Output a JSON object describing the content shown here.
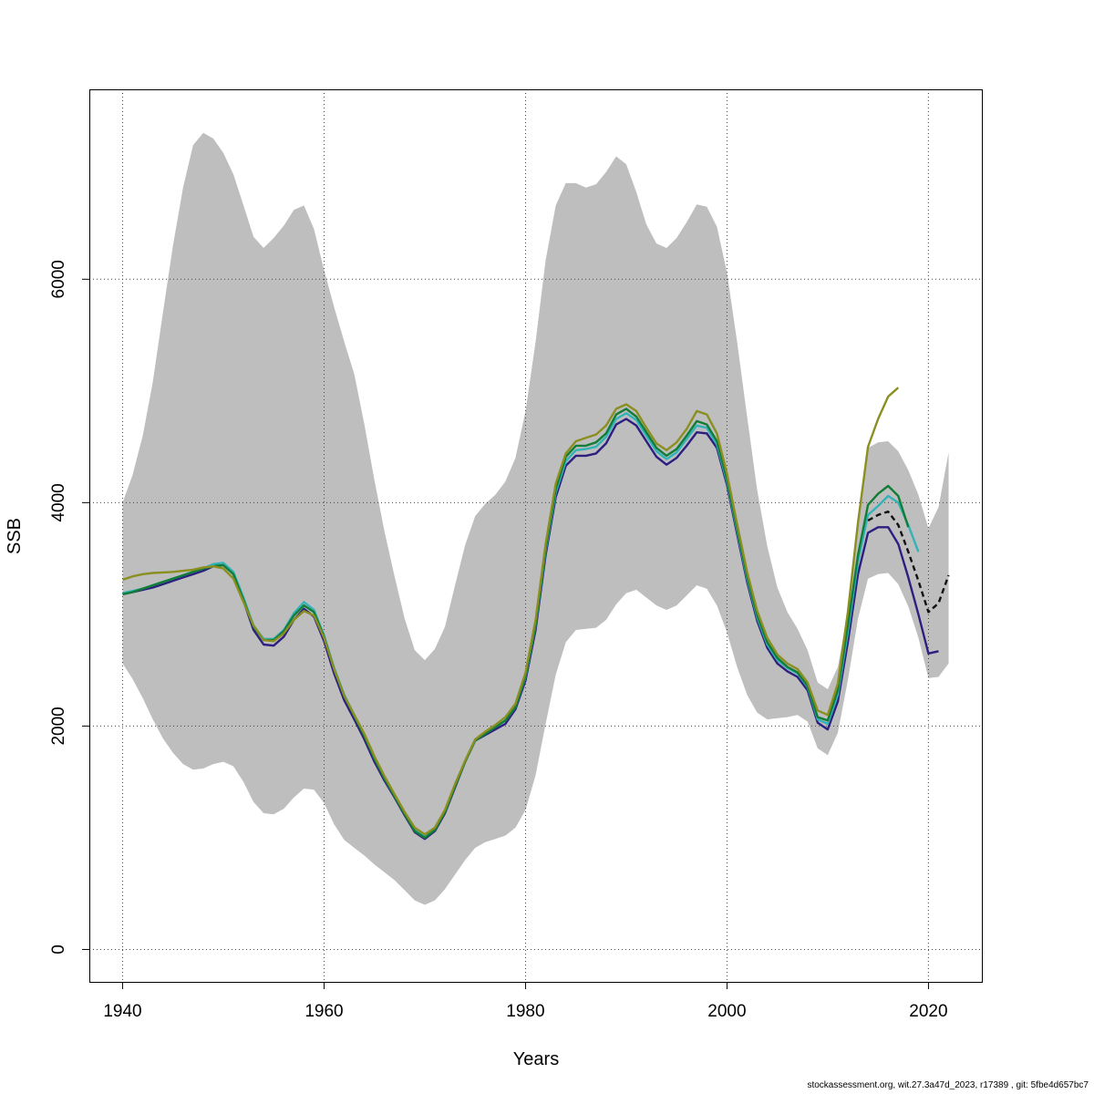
{
  "chart_data": {
    "type": "line",
    "title": "",
    "xlabel": "Years",
    "ylabel": "SSB",
    "xlim": [
      1936.7,
      2025.3
    ],
    "ylim": [
      -290,
      7700
    ],
    "x_ticks": [
      1940,
      1960,
      1980,
      2000,
      2020
    ],
    "y_ticks": [
      0,
      2000,
      4000,
      6000
    ],
    "grid": true,
    "confidence_band": {
      "x": [
        1940,
        1941,
        1942,
        1943,
        1944,
        1945,
        1946,
        1947,
        1948,
        1949,
        1950,
        1951,
        1952,
        1953,
        1954,
        1955,
        1956,
        1957,
        1958,
        1959,
        1960,
        1961,
        1962,
        1963,
        1964,
        1965,
        1966,
        1967,
        1968,
        1969,
        1970,
        1971,
        1972,
        1973,
        1974,
        1975,
        1976,
        1977,
        1978,
        1979,
        1980,
        1981,
        1982,
        1983,
        1984,
        1985,
        1986,
        1987,
        1988,
        1989,
        1990,
        1991,
        1992,
        1993,
        1994,
        1995,
        1996,
        1997,
        1998,
        1999,
        2000,
        2001,
        2002,
        2003,
        2004,
        2005,
        2006,
        2007,
        2008,
        2009,
        2010,
        2011,
        2012,
        2013,
        2014,
        2015,
        2016,
        2017,
        2018,
        2019,
        2020,
        2021,
        2022
      ],
      "lower": [
        2560,
        2420,
        2250,
        2060,
        1890,
        1760,
        1660,
        1610,
        1620,
        1660,
        1680,
        1640,
        1500,
        1320,
        1220,
        1210,
        1260,
        1360,
        1440,
        1430,
        1310,
        1120,
        980,
        910,
        840,
        760,
        690,
        620,
        530,
        440,
        400,
        440,
        540,
        670,
        800,
        910,
        960,
        990,
        1020,
        1090,
        1250,
        1560,
        2020,
        2460,
        2750,
        2860,
        2870,
        2880,
        2950,
        3090,
        3190,
        3220,
        3150,
        3080,
        3040,
        3080,
        3170,
        3260,
        3230,
        3080,
        2840,
        2530,
        2280,
        2120,
        2060,
        2070,
        2080,
        2100,
        2040,
        1800,
        1740,
        1940,
        2410,
        2960,
        3320,
        3360,
        3370,
        3270,
        3070,
        2790,
        2430,
        2440,
        2560
      ],
      "upper": [
        4000,
        4250,
        4600,
        5080,
        5700,
        6300,
        6820,
        7200,
        7310,
        7260,
        7130,
        6940,
        6660,
        6380,
        6280,
        6370,
        6480,
        6620,
        6660,
        6450,
        6080,
        5750,
        5440,
        5150,
        4700,
        4200,
        3740,
        3340,
        2960,
        2680,
        2590,
        2690,
        2890,
        3260,
        3620,
        3880,
        3990,
        4070,
        4190,
        4400,
        4820,
        5440,
        6170,
        6660,
        6860,
        6860,
        6820,
        6850,
        6960,
        7100,
        7030,
        6780,
        6490,
        6320,
        6280,
        6370,
        6510,
        6670,
        6650,
        6470,
        6060,
        5440,
        4770,
        4110,
        3610,
        3240,
        3020,
        2870,
        2680,
        2390,
        2330,
        2530,
        3020,
        3860,
        4490,
        4540,
        4550,
        4460,
        4290,
        4070,
        3770,
        3960,
        4450
      ]
    },
    "series": [
      {
        "color": "#2c1f80",
        "x": [
          1940,
          1941,
          1942,
          1943,
          1944,
          1945,
          1946,
          1947,
          1948,
          1949,
          1950,
          1951,
          1952,
          1953,
          1954,
          1955,
          1956,
          1957,
          1958,
          1959,
          1960,
          1961,
          1962,
          1963,
          1964,
          1965,
          1966,
          1967,
          1968,
          1969,
          1970,
          1971,
          1972,
          1973,
          1974,
          1975,
          1976,
          1977,
          1978,
          1979,
          1980,
          1981,
          1982,
          1983,
          1984,
          1985,
          1986,
          1987,
          1988,
          1989,
          1990,
          1991,
          1992,
          1993,
          1994,
          1995,
          1996,
          1997,
          1998,
          1999,
          2000,
          2001,
          2002,
          2003,
          2004,
          2005,
          2006,
          2007,
          2008,
          2009,
          2010,
          2011,
          2012,
          2013,
          2014,
          2015,
          2016,
          2017,
          2018,
          2019,
          2020,
          2021
        ],
        "y": [
          3180,
          3200,
          3220,
          3240,
          3270,
          3300,
          3330,
          3360,
          3390,
          3430,
          3450,
          3360,
          3120,
          2860,
          2730,
          2720,
          2800,
          2950,
          3050,
          2980,
          2760,
          2470,
          2230,
          2060,
          1880,
          1680,
          1510,
          1360,
          1200,
          1050,
          990,
          1060,
          1220,
          1450,
          1680,
          1870,
          1920,
          1970,
          2020,
          2150,
          2410,
          2860,
          3530,
          4050,
          4330,
          4420,
          4420,
          4440,
          4530,
          4700,
          4750,
          4690,
          4550,
          4410,
          4340,
          4400,
          4510,
          4630,
          4620,
          4490,
          4160,
          3720,
          3290,
          2940,
          2700,
          2560,
          2490,
          2440,
          2320,
          2030,
          1970,
          2220,
          2750,
          3360,
          3730,
          3780,
          3780,
          3630,
          3330,
          3000,
          2650,
          2670
        ]
      },
      {
        "color": "#33b3b8",
        "x": [
          1940,
          1941,
          1942,
          1943,
          1944,
          1945,
          1946,
          1947,
          1948,
          1949,
          1950,
          1951,
          1952,
          1953,
          1954,
          1955,
          1956,
          1957,
          1958,
          1959,
          1960,
          1961,
          1962,
          1963,
          1964,
          1965,
          1966,
          1967,
          1968,
          1969,
          1970,
          1971,
          1972,
          1973,
          1974,
          1975,
          1976,
          1977,
          1978,
          1979,
          1980,
          1981,
          1982,
          1983,
          1984,
          1985,
          1986,
          1987,
          1988,
          1989,
          1990,
          1991,
          1992,
          1993,
          1994,
          1995,
          1996,
          1997,
          1998,
          1999,
          2000,
          2001,
          2002,
          2003,
          2004,
          2005,
          2006,
          2007,
          2008,
          2009,
          2010,
          2011,
          2012,
          2013,
          2014,
          2015,
          2016,
          2017,
          2018,
          2019
        ],
        "y": [
          3190,
          3210,
          3230,
          3260,
          3290,
          3320,
          3350,
          3380,
          3410,
          3450,
          3460,
          3380,
          3150,
          2900,
          2780,
          2780,
          2860,
          3010,
          3110,
          3040,
          2810,
          2520,
          2280,
          2100,
          1920,
          1710,
          1540,
          1380,
          1220,
          1070,
          1010,
          1080,
          1240,
          1470,
          1690,
          1880,
          1940,
          1990,
          2050,
          2170,
          2440,
          2900,
          3570,
          4090,
          4370,
          4470,
          4480,
          4500,
          4590,
          4750,
          4800,
          4740,
          4600,
          4460,
          4390,
          4450,
          4570,
          4690,
          4670,
          4520,
          4190,
          3750,
          3320,
          2970,
          2730,
          2590,
          2520,
          2470,
          2350,
          2060,
          2020,
          2280,
          2840,
          3470,
          3890,
          3970,
          4060,
          4000,
          3800,
          3560
        ]
      },
      {
        "color": "#127d36",
        "x": [
          1940,
          1941,
          1942,
          1943,
          1944,
          1945,
          1946,
          1947,
          1948,
          1949,
          1950,
          1951,
          1952,
          1953,
          1954,
          1955,
          1956,
          1957,
          1958,
          1959,
          1960,
          1961,
          1962,
          1963,
          1964,
          1965,
          1966,
          1967,
          1968,
          1969,
          1970,
          1971,
          1972,
          1973,
          1974,
          1975,
          1976,
          1977,
          1978,
          1979,
          1980,
          1981,
          1982,
          1983,
          1984,
          1985,
          1986,
          1987,
          1988,
          1989,
          1990,
          1991,
          1992,
          1993,
          1994,
          1995,
          1996,
          1997,
          1998,
          1999,
          2000,
          2001,
          2002,
          2003,
          2004,
          2005,
          2006,
          2007,
          2008,
          2009,
          2010,
          2011,
          2012,
          2013,
          2014,
          2015,
          2016,
          2017,
          2018
        ],
        "y": [
          3180,
          3200,
          3230,
          3260,
          3290,
          3320,
          3350,
          3380,
          3410,
          3430,
          3440,
          3360,
          3130,
          2890,
          2770,
          2770,
          2850,
          2990,
          3080,
          3020,
          2800,
          2510,
          2270,
          2090,
          1910,
          1710,
          1530,
          1370,
          1210,
          1060,
          1000,
          1070,
          1230,
          1460,
          1680,
          1870,
          1930,
          1990,
          2050,
          2170,
          2450,
          2910,
          3590,
          4120,
          4410,
          4510,
          4510,
          4540,
          4620,
          4790,
          4840,
          4770,
          4630,
          4490,
          4420,
          4480,
          4600,
          4730,
          4700,
          4550,
          4210,
          3770,
          3340,
          2990,
          2750,
          2610,
          2530,
          2480,
          2360,
          2080,
          2050,
          2320,
          2900,
          3530,
          3980,
          4080,
          4150,
          4060,
          3780
        ]
      },
      {
        "color": "#8a8f20",
        "x": [
          1940,
          1941,
          1942,
          1943,
          1944,
          1945,
          1946,
          1947,
          1948,
          1949,
          1950,
          1951,
          1952,
          1953,
          1954,
          1955,
          1956,
          1957,
          1958,
          1959,
          1960,
          1961,
          1962,
          1963,
          1964,
          1965,
          1966,
          1967,
          1968,
          1969,
          1970,
          1971,
          1972,
          1973,
          1974,
          1975,
          1976,
          1977,
          1978,
          1979,
          1980,
          1981,
          1982,
          1983,
          1984,
          1985,
          1986,
          1987,
          1988,
          1989,
          1990,
          1991,
          1992,
          1993,
          1994,
          1995,
          1996,
          1997,
          1998,
          1999,
          2000,
          2001,
          2002,
          2003,
          2004,
          2005,
          2006,
          2007,
          2008,
          2009,
          2010,
          2011,
          2012,
          2013,
          2014,
          2015,
          2016,
          2017
        ],
        "y": [
          3310,
          3340,
          3360,
          3370,
          3375,
          3380,
          3390,
          3400,
          3420,
          3430,
          3410,
          3320,
          3110,
          2900,
          2770,
          2760,
          2830,
          2950,
          3030,
          2990,
          2790,
          2510,
          2270,
          2100,
          1930,
          1730,
          1550,
          1390,
          1230,
          1090,
          1030,
          1090,
          1250,
          1480,
          1690,
          1880,
          1950,
          2010,
          2080,
          2200,
          2480,
          2950,
          3630,
          4170,
          4440,
          4550,
          4580,
          4610,
          4690,
          4840,
          4880,
          4820,
          4670,
          4530,
          4470,
          4540,
          4660,
          4820,
          4790,
          4620,
          4260,
          3810,
          3380,
          3030,
          2790,
          2640,
          2560,
          2510,
          2390,
          2140,
          2100,
          2380,
          3020,
          3820,
          4500,
          4750,
          4950,
          5030
        ]
      },
      {
        "color": "#111111",
        "dashed": true,
        "x": [
          2014,
          2015,
          2016,
          2017,
          2018,
          2019,
          2020,
          2021,
          2022
        ],
        "y": [
          3840,
          3890,
          3920,
          3800,
          3560,
          3300,
          3020,
          3100,
          3350
        ]
      }
    ]
  },
  "footer": "stockassessment.org, wit.27.3a47d_2023, r17389 , git: 5fbe4d657bc7"
}
